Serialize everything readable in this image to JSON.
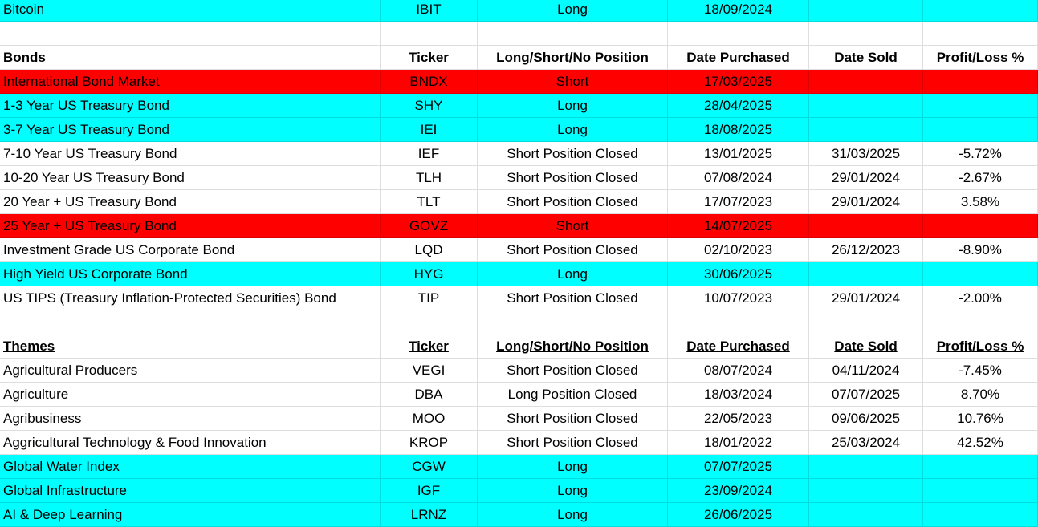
{
  "app": {
    "description": "Spreadsheet portfolio tracker of ETF positions"
  },
  "colors": {
    "cyan": "#00ffff",
    "red": "#ff0000",
    "white": "#ffffff",
    "text": "#000000",
    "gridline_over_white": "#dedede"
  },
  "legend": {
    "cyan_meaning": "Long (open position)",
    "red_meaning": "Short (open position)",
    "white_meaning": "Closed / no position"
  },
  "table": {
    "column_keys": [
      "name",
      "ticker",
      "position",
      "date-purchased",
      "date-sold",
      "profit-loss"
    ],
    "header_labels": [
      "Ticker",
      "Long/Short/No Position",
      "Date Purchased",
      "Date Sold",
      "Profit/Loss %"
    ],
    "section_labels": [
      "Bonds",
      "Themes"
    ],
    "rows": [
      {
        "type": "data",
        "bg": "cyan",
        "cells": [
          "Bitcoin",
          "IBIT",
          "Long",
          "18/09/2024",
          "",
          ""
        ]
      },
      {
        "type": "empty",
        "bg": "white",
        "cells": [
          "",
          "",
          "",
          "",
          "",
          ""
        ]
      },
      {
        "type": "header",
        "bg": "white",
        "cells": [
          "Bonds",
          "Ticker",
          "Long/Short/No Position",
          "Date Purchased",
          "Date Sold",
          "Profit/Loss %"
        ]
      },
      {
        "type": "data",
        "bg": "red",
        "cells": [
          "International Bond Market",
          "BNDX",
          "Short",
          "17/03/2025",
          "",
          ""
        ]
      },
      {
        "type": "data",
        "bg": "cyan",
        "cells": [
          "1-3 Year US Treasury Bond",
          "SHY",
          "Long",
          "28/04/2025",
          "",
          ""
        ]
      },
      {
        "type": "data",
        "bg": "cyan",
        "cells": [
          "3-7 Year US Treasury Bond",
          "IEI",
          "Long",
          "18/08/2025",
          "",
          ""
        ]
      },
      {
        "type": "data",
        "bg": "white",
        "cells": [
          "7-10 Year US Treasury Bond",
          "IEF",
          "Short Position Closed",
          "13/01/2025",
          "31/03/2025",
          "-5.72%"
        ]
      },
      {
        "type": "data",
        "bg": "white",
        "cells": [
          "10-20 Year US Treasury Bond",
          "TLH",
          "Short Position Closed",
          "07/08/2024",
          "29/01/2024",
          "-2.67%"
        ]
      },
      {
        "type": "data",
        "bg": "white",
        "cells": [
          "20 Year + US Treasury Bond",
          "TLT",
          "Short Position Closed",
          "17/07/2023",
          "29/01/2024",
          "3.58%"
        ]
      },
      {
        "type": "data",
        "bg": "red",
        "cells": [
          "25 Year + US Treasury Bond",
          "GOVZ",
          "Short",
          "14/07/2025",
          "",
          ""
        ]
      },
      {
        "type": "data",
        "bg": "white",
        "cells": [
          "Investment Grade US Corporate Bond",
          "LQD",
          "Short Position Closed",
          "02/10/2023",
          "26/12/2023",
          "-8.90%"
        ]
      },
      {
        "type": "data",
        "bg": "cyan",
        "cells": [
          "High Yield US Corporate Bond",
          "HYG",
          "Long",
          "30/06/2025",
          "",
          ""
        ]
      },
      {
        "type": "data",
        "bg": "white",
        "cells": [
          "US TIPS (Treasury Inflation-Protected Securities) Bond",
          "TIP",
          "Short Position Closed",
          "10/07/2023",
          "29/01/2024",
          "-2.00%"
        ]
      },
      {
        "type": "empty",
        "bg": "white",
        "cells": [
          "",
          "",
          "",
          "",
          "",
          ""
        ]
      },
      {
        "type": "header",
        "bg": "white",
        "cells": [
          "Themes",
          "Ticker",
          "Long/Short/No Position",
          "Date Purchased",
          "Date Sold",
          "Profit/Loss %"
        ]
      },
      {
        "type": "data",
        "bg": "white",
        "cells": [
          "Agricultural Producers",
          "VEGI",
          "Short Position Closed",
          "08/07/2024",
          "04/11/2024",
          "-7.45%"
        ]
      },
      {
        "type": "data",
        "bg": "white",
        "cells": [
          "Agriculture",
          "DBA",
          "Long Position Closed",
          "18/03/2024",
          "07/07/2025",
          "8.70%"
        ]
      },
      {
        "type": "data",
        "bg": "white",
        "cells": [
          "Agribusiness",
          "MOO",
          "Short Position Closed",
          "22/05/2023",
          "09/06/2025",
          "10.76%"
        ]
      },
      {
        "type": "data",
        "bg": "white",
        "cells": [
          "Aggricultural Technology & Food Innovation",
          "KROP",
          "Short Position Closed",
          "18/01/2022",
          "25/03/2024",
          "42.52%"
        ]
      },
      {
        "type": "data",
        "bg": "cyan",
        "cells": [
          "Global Water Index",
          "CGW",
          "Long",
          "07/07/2025",
          "",
          ""
        ]
      },
      {
        "type": "data",
        "bg": "cyan",
        "cells": [
          "Global Infrastructure",
          "IGF",
          "Long",
          "23/09/2024",
          "",
          ""
        ]
      },
      {
        "type": "data",
        "bg": "cyan",
        "cells": [
          "AI & Deep Learning",
          "LRNZ",
          "Long",
          "26/06/2025",
          "",
          ""
        ]
      }
    ]
  }
}
